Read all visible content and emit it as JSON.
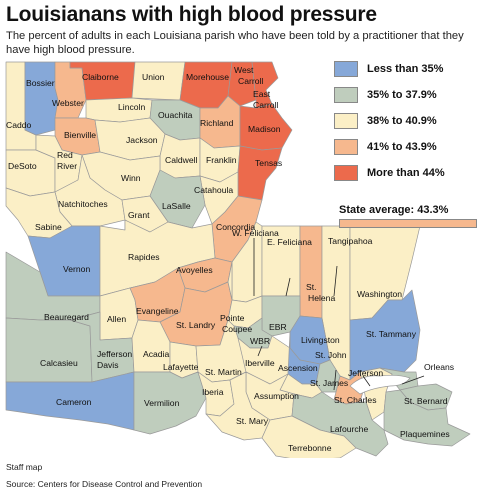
{
  "title": "Louisianans with high blood pressure",
  "subtitle": "The percent of adults in each Louisiana parish who have been told by a practitioner that they have high blood pressure.",
  "legend": {
    "items": [
      {
        "label": "Less than 35%",
        "color": "#86a8d8"
      },
      {
        "label": "35% to 37.9%",
        "color": "#bfcdbd"
      },
      {
        "label": "38% to 40.9%",
        "color": "#fbefc6"
      },
      {
        "label": "41% to 43.9%",
        "color": "#f6b88e"
      },
      {
        "label": "More than 44%",
        "color": "#ec6a4c"
      }
    ],
    "state_average_label": "State average: 43.3%",
    "state_average_color": "#f6b88e"
  },
  "map": {
    "water_color": "#ffffff",
    "border_color": "#9a9a9a",
    "parishes": [
      {
        "name": "Bossier",
        "category": 0
      },
      {
        "name": "Claiborne",
        "category": 4
      },
      {
        "name": "Union",
        "category": 2
      },
      {
        "name": "Morehouse",
        "category": 4
      },
      {
        "name": "West Carroll",
        "category": 4
      },
      {
        "name": "East Carroll",
        "category": 4
      },
      {
        "name": "Webster",
        "category": 3
      },
      {
        "name": "Lincoln",
        "category": 2
      },
      {
        "name": "Ouachita",
        "category": 1
      },
      {
        "name": "Richland",
        "category": 3
      },
      {
        "name": "Madison",
        "category": 4
      },
      {
        "name": "Caddo",
        "category": 2
      },
      {
        "name": "Bienville",
        "category": 3
      },
      {
        "name": "Jackson",
        "category": 2
      },
      {
        "name": "Tensas",
        "category": 4
      },
      {
        "name": "Caldwell",
        "category": 2
      },
      {
        "name": "Franklin",
        "category": 2
      },
      {
        "name": "DeSoto",
        "category": 2
      },
      {
        "name": "Red River",
        "category": 2
      },
      {
        "name": "Winn",
        "category": 2
      },
      {
        "name": "Catahoula",
        "category": 2
      },
      {
        "name": "LaSalle",
        "category": 1
      },
      {
        "name": "Natchitoches",
        "category": 2
      },
      {
        "name": "Grant",
        "category": 2
      },
      {
        "name": "Concordia",
        "category": 3
      },
      {
        "name": "Sabine",
        "category": 2
      },
      {
        "name": "Vernon",
        "category": 0
      },
      {
        "name": "Rapides",
        "category": 2
      },
      {
        "name": "Avoyelles",
        "category": 3
      },
      {
        "name": "W. Feliciana",
        "category": 2
      },
      {
        "name": "E. Feliciana",
        "category": 2
      },
      {
        "name": "Tangipahoa",
        "category": 2
      },
      {
        "name": "St. Helena",
        "category": 3
      },
      {
        "name": "Washington",
        "category": 2
      },
      {
        "name": "Beauregard",
        "category": 1
      },
      {
        "name": "Allen",
        "category": 2
      },
      {
        "name": "Evangeline",
        "category": 3
      },
      {
        "name": "St. Landry",
        "category": 3
      },
      {
        "name": "Pointe Coupee",
        "category": 2
      },
      {
        "name": "EBR",
        "category": 1
      },
      {
        "name": "Livingston",
        "category": 0
      },
      {
        "name": "St. Tammany",
        "category": 0
      },
      {
        "name": "WBR",
        "category": 1
      },
      {
        "name": "Calcasieu",
        "category": 1
      },
      {
        "name": "Jefferson Davis",
        "category": 1
      },
      {
        "name": "Acadia",
        "category": 2
      },
      {
        "name": "Lafayette",
        "category": 2
      },
      {
        "name": "St. Martin",
        "category": 2
      },
      {
        "name": "Iberville",
        "category": 2
      },
      {
        "name": "Ascension",
        "category": 0
      },
      {
        "name": "St. John",
        "category": 1
      },
      {
        "name": "Orleans",
        "category": 1
      },
      {
        "name": "St. James",
        "category": 2
      },
      {
        "name": "Jefferson",
        "category": 2
      },
      {
        "name": "St. Charles",
        "category": 3
      },
      {
        "name": "St. Bernard",
        "category": 1
      },
      {
        "name": "Cameron",
        "category": 0
      },
      {
        "name": "Vermilion",
        "category": 1
      },
      {
        "name": "Iberia",
        "category": 2
      },
      {
        "name": "Assumption",
        "category": 2
      },
      {
        "name": "St. Mary",
        "category": 2
      },
      {
        "name": "Lafourche",
        "category": 1
      },
      {
        "name": "Plaquemines",
        "category": 1
      },
      {
        "name": "Terrebonne",
        "category": 2
      }
    ]
  },
  "credit": "Staff map",
  "source": "Source: Centers for Disease Control and Prevention"
}
